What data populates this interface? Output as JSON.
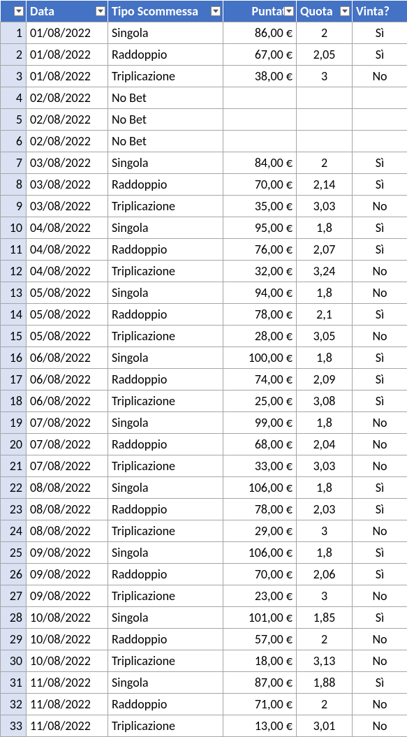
{
  "colors": {
    "header_bg": "#4472c4",
    "header_fg": "#ffffff",
    "rownum_bg": "#d9e1f2",
    "border": "#a6a6a6",
    "text": "#000000",
    "bg": "#ffffff"
  },
  "columns": [
    {
      "key": "num",
      "label": "#",
      "align": "right",
      "width": 37,
      "filter": true
    },
    {
      "key": "data",
      "label": "Data",
      "align": "left",
      "width": 117,
      "filter": true
    },
    {
      "key": "tipo",
      "label": "Tipo Scommessa",
      "align": "left",
      "width": 165,
      "filter": true
    },
    {
      "key": "puntata",
      "label": "Puntata",
      "align": "right",
      "width": 105,
      "filter": true
    },
    {
      "key": "quota",
      "label": "Quota",
      "align": "center",
      "width": 80,
      "filter": true
    },
    {
      "key": "vinta",
      "label": "Vinta?",
      "align": "center",
      "width": 79,
      "filter": false
    }
  ],
  "rows": [
    {
      "num": 1,
      "data": "01/08/2022",
      "tipo": "Singola",
      "puntata": "86,00 €",
      "quota": "2",
      "vinta": "Sì"
    },
    {
      "num": 2,
      "data": "01/08/2022",
      "tipo": "Raddoppio",
      "puntata": "67,00 €",
      "quota": "2,05",
      "vinta": "Sì"
    },
    {
      "num": 3,
      "data": "01/08/2022",
      "tipo": "Triplicazione",
      "puntata": "38,00 €",
      "quota": "3",
      "vinta": "No"
    },
    {
      "num": 4,
      "data": "02/08/2022",
      "tipo": "No Bet",
      "puntata": "",
      "quota": "",
      "vinta": ""
    },
    {
      "num": 5,
      "data": "02/08/2022",
      "tipo": "No Bet",
      "puntata": "",
      "quota": "",
      "vinta": ""
    },
    {
      "num": 6,
      "data": "02/08/2022",
      "tipo": "No Bet",
      "puntata": "",
      "quota": "",
      "vinta": ""
    },
    {
      "num": 7,
      "data": "03/08/2022",
      "tipo": "Singola",
      "puntata": "84,00 €",
      "quota": "2",
      "vinta": "Sì"
    },
    {
      "num": 8,
      "data": "03/08/2022",
      "tipo": "Raddoppio",
      "puntata": "70,00 €",
      "quota": "2,14",
      "vinta": "Sì"
    },
    {
      "num": 9,
      "data": "03/08/2022",
      "tipo": "Triplicazione",
      "puntata": "35,00 €",
      "quota": "3,03",
      "vinta": "No"
    },
    {
      "num": 10,
      "data": "04/08/2022",
      "tipo": "Singola",
      "puntata": "95,00 €",
      "quota": "1,8",
      "vinta": "Sì"
    },
    {
      "num": 11,
      "data": "04/08/2022",
      "tipo": "Raddoppio",
      "puntata": "76,00 €",
      "quota": "2,07",
      "vinta": "Sì"
    },
    {
      "num": 12,
      "data": "04/08/2022",
      "tipo": "Triplicazione",
      "puntata": "32,00 €",
      "quota": "3,24",
      "vinta": "No"
    },
    {
      "num": 13,
      "data": "05/08/2022",
      "tipo": "Singola",
      "puntata": "94,00 €",
      "quota": "1,8",
      "vinta": "No"
    },
    {
      "num": 14,
      "data": "05/08/2022",
      "tipo": "Raddoppio",
      "puntata": "78,00 €",
      "quota": "2,1",
      "vinta": "Sì"
    },
    {
      "num": 15,
      "data": "05/08/2022",
      "tipo": "Triplicazione",
      "puntata": "28,00 €",
      "quota": "3,05",
      "vinta": "No"
    },
    {
      "num": 16,
      "data": "06/08/2022",
      "tipo": "Singola",
      "puntata": "100,00 €",
      "quota": "1,8",
      "vinta": "Sì"
    },
    {
      "num": 17,
      "data": "06/08/2022",
      "tipo": "Raddoppio",
      "puntata": "74,00 €",
      "quota": "2,09",
      "vinta": "Sì"
    },
    {
      "num": 18,
      "data": "06/08/2022",
      "tipo": "Triplicazione",
      "puntata": "25,00 €",
      "quota": "3,08",
      "vinta": "Sì"
    },
    {
      "num": 19,
      "data": "07/08/2022",
      "tipo": "Singola",
      "puntata": "99,00 €",
      "quota": "1,8",
      "vinta": "No"
    },
    {
      "num": 20,
      "data": "07/08/2022",
      "tipo": "Raddoppio",
      "puntata": "68,00 €",
      "quota": "2,04",
      "vinta": "No"
    },
    {
      "num": 21,
      "data": "07/08/2022",
      "tipo": "Triplicazione",
      "puntata": "33,00 €",
      "quota": "3,03",
      "vinta": "No"
    },
    {
      "num": 22,
      "data": "08/08/2022",
      "tipo": "Singola",
      "puntata": "106,00 €",
      "quota": "1,8",
      "vinta": "Sì"
    },
    {
      "num": 23,
      "data": "08/08/2022",
      "tipo": "Raddoppio",
      "puntata": "78,00 €",
      "quota": "2,03",
      "vinta": "Sì"
    },
    {
      "num": 24,
      "data": "08/08/2022",
      "tipo": "Triplicazione",
      "puntata": "29,00 €",
      "quota": "3",
      "vinta": "No"
    },
    {
      "num": 25,
      "data": "09/08/2022",
      "tipo": "Singola",
      "puntata": "106,00 €",
      "quota": "1,8",
      "vinta": "Sì"
    },
    {
      "num": 26,
      "data": "09/08/2022",
      "tipo": "Raddoppio",
      "puntata": "70,00 €",
      "quota": "2,06",
      "vinta": "Sì"
    },
    {
      "num": 27,
      "data": "09/08/2022",
      "tipo": "Triplicazione",
      "puntata": "23,00 €",
      "quota": "3",
      "vinta": "No"
    },
    {
      "num": 28,
      "data": "10/08/2022",
      "tipo": "Singola",
      "puntata": "101,00 €",
      "quota": "1,85",
      "vinta": "Sì"
    },
    {
      "num": 29,
      "data": "10/08/2022",
      "tipo": "Raddoppio",
      "puntata": "57,00 €",
      "quota": "2",
      "vinta": "No"
    },
    {
      "num": 30,
      "data": "10/08/2022",
      "tipo": "Triplicazione",
      "puntata": "18,00 €",
      "quota": "3,13",
      "vinta": "No"
    },
    {
      "num": 31,
      "data": "11/08/2022",
      "tipo": "Singola",
      "puntata": "87,00 €",
      "quota": "1,88",
      "vinta": "Sì"
    },
    {
      "num": 32,
      "data": "11/08/2022",
      "tipo": "Raddoppio",
      "puntata": "71,00 €",
      "quota": "2",
      "vinta": "No"
    },
    {
      "num": 33,
      "data": "11/08/2022",
      "tipo": "Triplicazione",
      "puntata": "13,00 €",
      "quota": "3,01",
      "vinta": "No"
    }
  ]
}
